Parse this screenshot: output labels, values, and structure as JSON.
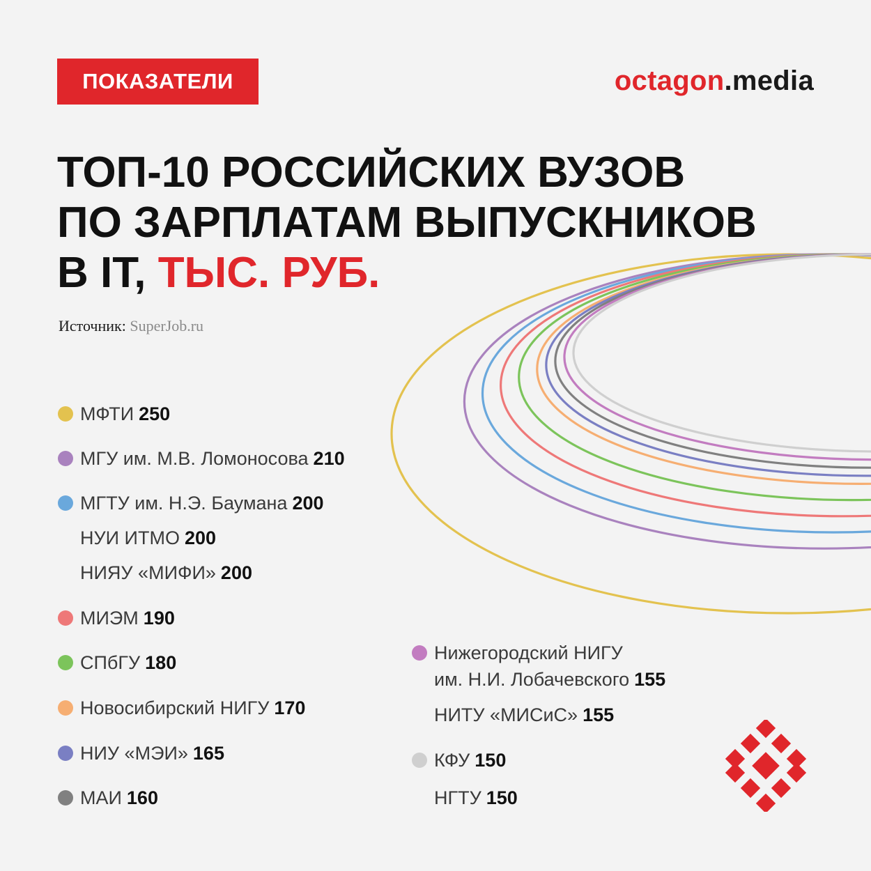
{
  "header": {
    "badge": "ПОКАЗАТЕЛИ",
    "brand_main": "octagon",
    "brand_tld": ".media"
  },
  "title": {
    "line1": "ТОП-10 РОССИЙСКИХ ВУЗОВ",
    "line2": "ПО ЗАРПЛАТАМ ВЫПУСКНИКОВ",
    "line3_a": "В IT, ",
    "line3_b": "ТЫС. РУБ."
  },
  "source": {
    "label": "Источник:",
    "value": "SuperJob.ru"
  },
  "colors": {
    "accent": "#e0262b",
    "background": "#f3f3f3"
  },
  "chart_data": {
    "type": "ring-ranking",
    "title": "ТОП-10 РОССИЙСКИХ ВУЗОВ ПО ЗАРПЛАТАМ ВЫПУСКНИКОВ В IT, ТЫС. РУБ.",
    "unit": "тыс. руб.",
    "ranks": [
      {
        "rank": 1,
        "value": 250,
        "color": "#e3c24f",
        "names": [
          "МФТИ"
        ]
      },
      {
        "rank": 2,
        "value": 210,
        "color": "#a982be",
        "names": [
          "МГУ им. М.В. Ломоносова"
        ]
      },
      {
        "rank": 3,
        "value": 200,
        "color": "#6aa8dc",
        "names": [
          "МГТУ им. Н.Э. Баумана",
          "НУИ ИТМО",
          "НИЯУ «МИФИ»"
        ]
      },
      {
        "rank": 4,
        "value": 190,
        "color": "#ee7878",
        "names": [
          "МИЭМ"
        ]
      },
      {
        "rank": 5,
        "value": 180,
        "color": "#7cc45b",
        "names": [
          "СПбГУ"
        ]
      },
      {
        "rank": 6,
        "value": 170,
        "color": "#f6ae72",
        "names": [
          "Новосибирский НИГУ"
        ]
      },
      {
        "rank": 7,
        "value": 165,
        "color": "#7a7fc3",
        "names": [
          "НИУ «МЭИ»"
        ]
      },
      {
        "rank": 8,
        "value": 160,
        "color": "#808080",
        "names": [
          "МАИ"
        ]
      },
      {
        "rank": 9,
        "value": 155,
        "color": "#c27cc0",
        "names": [
          "Нижегородский НИГУ им. Н.И. Лобачевского",
          "НИТУ «МИСиС»"
        ]
      },
      {
        "rank": 10,
        "value": 150,
        "color": "#cfcfcf",
        "names": [
          "КФУ",
          "НГТУ"
        ]
      }
    ]
  },
  "legend": {
    "left": [
      {
        "name": "МФТИ",
        "value": "250",
        "rank": 1
      },
      {
        "name": "МГУ им. М.В. Ломоносова",
        "value": "210",
        "rank": 2
      },
      {
        "name": "МГТУ им. Н.Э. Баумана",
        "value": "200",
        "rank": 3
      },
      {
        "name": "НУИ ИТМО",
        "value": "200",
        "rank": 3
      },
      {
        "name": "НИЯУ «МИФИ»",
        "value": "200",
        "rank": 3
      },
      {
        "name": "МИЭМ",
        "value": "190",
        "rank": 4
      },
      {
        "name": "СПбГУ",
        "value": "180",
        "rank": 5
      },
      {
        "name": "Новосибирский НИГУ",
        "value": "170",
        "rank": 6
      },
      {
        "name": "НИУ «МЭИ»",
        "value": "165",
        "rank": 7
      },
      {
        "name": "МАИ",
        "value": "160",
        "rank": 8
      }
    ],
    "right": [
      {
        "name": "Нижегородский НИГУ",
        "name2": "им. Н.И. Лобачевского",
        "value": "155",
        "rank": 9
      },
      {
        "name": "НИТУ «МИСиС»",
        "value": "155",
        "rank": 9
      },
      {
        "name": "КФУ",
        "value": "150",
        "rank": 10
      },
      {
        "name": "НГТУ",
        "value": "150",
        "rank": 10
      }
    ]
  }
}
